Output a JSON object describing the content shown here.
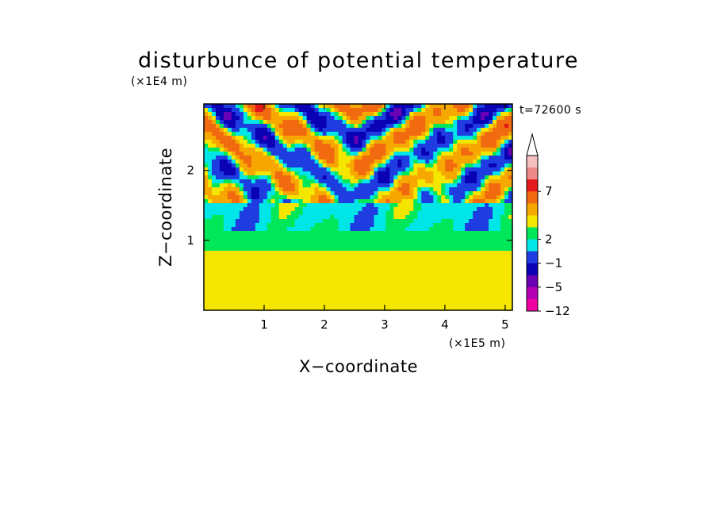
{
  "chart_data": {
    "type": "heatmap",
    "title": "disturbunce of potential temperature",
    "xlabel": "X−coordinate",
    "ylabel": "Z−coordinate",
    "x_scale_label": "(×1E5 m)",
    "y_scale_label": "(×1E4 m)",
    "time_label": "t=72600 s",
    "x_ticks": [
      "1",
      "2",
      "3",
      "4",
      "5"
    ],
    "y_ticks": [
      "1",
      "2"
    ],
    "xlim": [
      0,
      5.12
    ],
    "ylim": [
      0,
      2.95
    ],
    "colorbar": {
      "labels": [
        "7",
        "2",
        "−1",
        "−5",
        "−12"
      ],
      "colors_top_to_bottom": [
        "#f4c0c0",
        "#ee8a8a",
        "#e41a1a",
        "#f26a10",
        "#f6a800",
        "#f5e600",
        "#00e85a",
        "#00e6e6",
        "#1e3ce0",
        "#0a00b4",
        "#6a00b4",
        "#b400b4",
        "#f000a0"
      ],
      "extend": "max"
    }
  }
}
